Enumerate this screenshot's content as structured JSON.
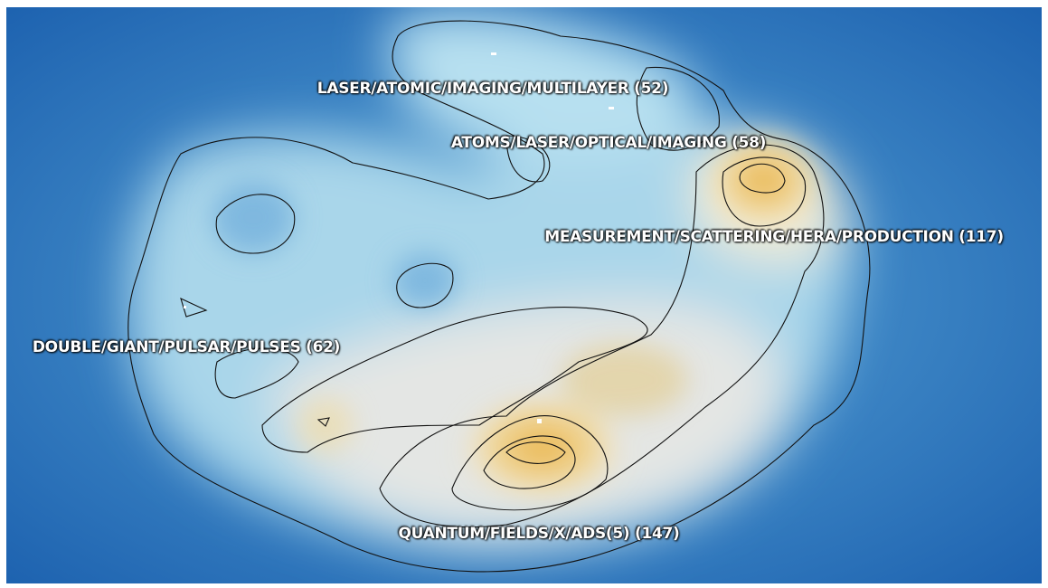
{
  "labels": [
    {
      "text": "LASER/ATOMIC/IMAGING/MULTILAYER (52)"
    },
    {
      "text": "ATOMS/LASER/OPTICAL/IMAGING (58)"
    },
    {
      "text": "MEASUREMENT/SCATTERING/HERA/PRODUCTION (117)"
    },
    {
      "text": "DOUBLE/GIANT/PULSAR/PULSES (62)"
    },
    {
      "text": "QUANTUM/FIELDS/X/ADS(5) (147)"
    }
  ]
}
